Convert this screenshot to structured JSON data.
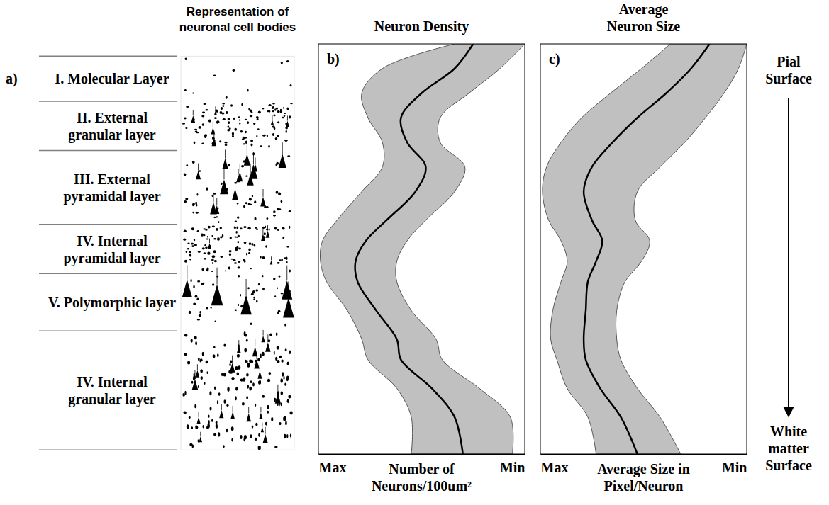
{
  "figure": {
    "letter": "a)",
    "illustration_title": "Representation of neuronal cell bodies",
    "layers": [
      {
        "label": "I. Molecular Layer",
        "depth": [
          3,
          14
        ]
      },
      {
        "label": "II. External granular layer",
        "depth": [
          14,
          26
        ]
      },
      {
        "label": "III. External pyramidal layer",
        "depth": [
          26,
          44
        ]
      },
      {
        "label": "IV. Internal pyramidal layer",
        "depth": [
          44,
          56
        ]
      },
      {
        "label": "V. Polymorphic layer",
        "depth": [
          56,
          70
        ]
      },
      {
        "label": "IV. Internal granular layer",
        "depth": [
          70,
          99
        ]
      }
    ],
    "top_label": "Pial Surface",
    "bottom_label": "White matter Surface"
  },
  "chart_data": [
    {
      "type": "line",
      "letter": "b)",
      "title": "Neuron Density",
      "orientation": "horizontal",
      "x": [
        0,
        6,
        12,
        18,
        24,
        30,
        36,
        43,
        48,
        53,
        58,
        65,
        72,
        77,
        84,
        91,
        100
      ],
      "xlim": [
        0,
        100
      ],
      "ylim": [
        100,
        0
      ],
      "yticks": [
        {
          "value": 100,
          "label": "Max"
        },
        {
          "value": 0,
          "label": "Min"
        }
      ],
      "y_label": "Number of Neurons/100um²",
      "tick_labels": "y",
      "series": [
        {
          "color": "#000000",
          "values": [
            25,
            34,
            50,
            60,
            57,
            48,
            53,
            67,
            77,
            82,
            81,
            72,
            62,
            60,
            45,
            34,
            30
          ],
          "upper": [
            34,
            69,
            79,
            76,
            69,
            69,
            79,
            91,
            98,
            99,
            96,
            86,
            79,
            76,
            62,
            55,
            55
          ],
          "lower": [
            0,
            12,
            27,
            41,
            41,
            29,
            34,
            48,
            57,
            62,
            62,
            55,
            43,
            40,
            22,
            7,
            6
          ]
        }
      ]
    },
    {
      "type": "line",
      "letter": "c)",
      "title": "Average Neuron Size",
      "orientation": "horizontal",
      "x": [
        0,
        6,
        12,
        18,
        24,
        30,
        36,
        43,
        48,
        53,
        58,
        65,
        72,
        77,
        84,
        91,
        100
      ],
      "xlim": [
        0,
        100
      ],
      "ylim": [
        100,
        0
      ],
      "yticks": [
        {
          "value": 100,
          "label": "Max"
        },
        {
          "value": 0,
          "label": "Min"
        }
      ],
      "y_label": "Average Size in Pixel/Neuron",
      "tick_labels": "y",
      "series": [
        {
          "color": "#000000",
          "values": [
            18,
            27,
            39,
            53,
            65,
            75,
            79,
            75,
            70,
            73,
            77,
            78,
            79,
            78,
            71,
            61,
            53
          ],
          "upper": [
            37,
            51,
            66,
            80,
            90,
            97,
            99,
            96,
            90,
            87,
            90,
            94,
            95,
            92,
            87,
            77,
            73
          ],
          "lower": [
            0,
            4,
            11,
            20,
            30,
            42,
            53,
            54,
            47,
            51,
            59,
            63,
            63,
            61,
            53,
            42,
            32
          ]
        }
      ]
    }
  ]
}
